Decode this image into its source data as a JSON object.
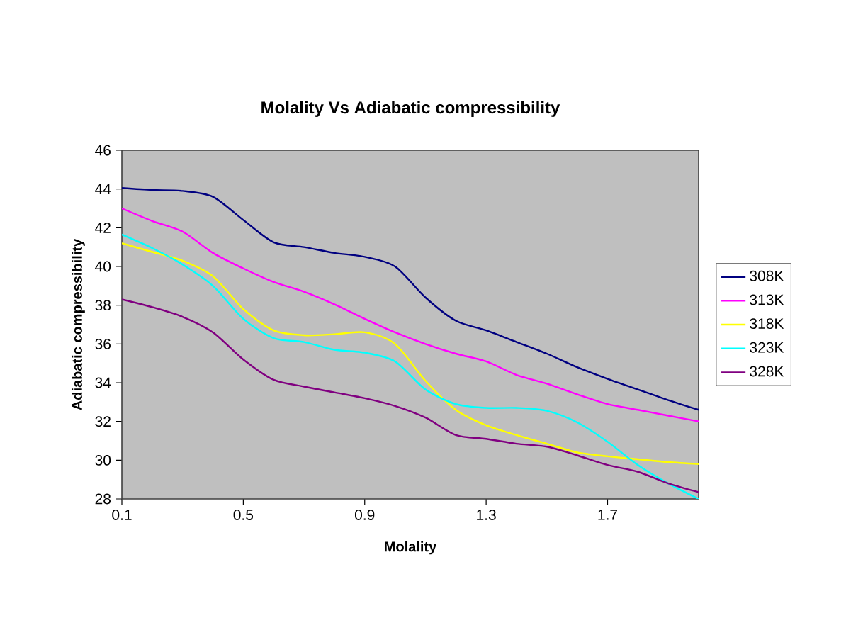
{
  "chart_data": {
    "type": "line",
    "title": "Molality Vs Adiabatic compressibility",
    "xlabel": "Molality",
    "ylabel": "Adiabatic compressibility",
    "x": [
      0.1,
      0.2,
      0.3,
      0.4,
      0.5,
      0.6,
      0.7,
      0.8,
      0.9,
      1.0,
      1.1,
      1.2,
      1.3,
      1.4,
      1.5,
      1.6,
      1.7,
      1.8,
      1.9,
      2.0
    ],
    "xlim": [
      0.1,
      2.0
    ],
    "xticks": [
      0.1,
      0.5,
      0.9,
      1.3,
      1.7
    ],
    "ylim": [
      28,
      46
    ],
    "yticks": [
      28,
      30,
      32,
      34,
      36,
      38,
      40,
      42,
      44,
      46
    ],
    "legend": "right",
    "grid": false,
    "marker": "none",
    "line_style": "solid",
    "series": [
      {
        "name": "308K",
        "color": "#000080",
        "values": [
          44.05,
          43.95,
          43.9,
          43.6,
          42.4,
          41.25,
          41.0,
          40.7,
          40.5,
          40.0,
          38.4,
          37.2,
          36.7,
          36.1,
          35.5,
          34.8,
          34.2,
          33.65,
          33.1,
          32.6
        ]
      },
      {
        "name": "313K",
        "color": "#ff00ff",
        "values": [
          43.0,
          42.35,
          41.8,
          40.7,
          39.9,
          39.2,
          38.7,
          38.05,
          37.3,
          36.6,
          36.0,
          35.5,
          35.1,
          34.4,
          33.95,
          33.4,
          32.9,
          32.6,
          32.3,
          32.0
        ]
      },
      {
        "name": "318K",
        "color": "#ffff00",
        "values": [
          41.2,
          40.75,
          40.3,
          39.5,
          37.8,
          36.7,
          36.45,
          36.5,
          36.6,
          36.0,
          34.1,
          32.6,
          31.8,
          31.3,
          30.85,
          30.4,
          30.2,
          30.05,
          29.9,
          29.8
        ]
      },
      {
        "name": "323K",
        "color": "#00ffff",
        "values": [
          41.65,
          40.95,
          40.1,
          39.0,
          37.3,
          36.3,
          36.1,
          35.7,
          35.55,
          35.1,
          33.65,
          32.9,
          32.7,
          32.7,
          32.55,
          31.95,
          30.95,
          29.75,
          28.8,
          28.0
        ]
      },
      {
        "name": "328K",
        "color": "#800080",
        "values": [
          38.3,
          37.9,
          37.4,
          36.6,
          35.2,
          34.15,
          33.8,
          33.5,
          33.2,
          32.8,
          32.2,
          31.3,
          31.1,
          30.85,
          30.7,
          30.25,
          29.75,
          29.4,
          28.8,
          28.35
        ]
      }
    ]
  }
}
